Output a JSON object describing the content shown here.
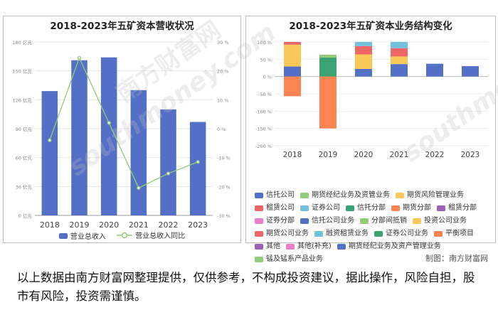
{
  "footer": {
    "credit": "制图：南方财富网",
    "disclaimer": "以上数据由南方财富网整理提供，仅供参考，不构成投资建议，据此操作，风险自担，股市有风险，投资需谨慎。"
  },
  "watermark": {
    "brand_cn": "南方财富网",
    "brand_en": "southmoney.com"
  },
  "chart_data": [
    {
      "type": "bar",
      "title": "2018-2023年五矿资本营收状况",
      "categories": [
        "2018",
        "2019",
        "2020",
        "2021",
        "2022",
        "2023"
      ],
      "series": [
        {
          "name": "营业总收入",
          "kind": "bar",
          "axis": "left",
          "color": "#5470c6",
          "values": [
            129,
            161,
            164,
            130,
            110,
            97
          ]
        },
        {
          "name": "营业总收入同比",
          "kind": "line",
          "axis": "right",
          "color": "#91cc75",
          "values": [
            -4,
            24.5,
            2,
            -20.5,
            -15.5,
            -11.5
          ]
        }
      ],
      "y_left": {
        "ticks": [
          0,
          30,
          60,
          90,
          120,
          150,
          180
        ],
        "tick_labels": [
          "0 亿元",
          "30 亿元",
          "60 亿元",
          "90 亿元",
          "120 亿元",
          "150 亿元",
          "180 亿元"
        ],
        "min": 0,
        "max": 180
      },
      "y_right": {
        "ticks": [
          -30,
          -20,
          -10,
          0,
          10,
          20,
          30
        ],
        "tick_labels": [
          "-30 %",
          "-20 %",
          "-10 %",
          "0 %",
          "10 %",
          "20 %",
          "30 %"
        ],
        "min": -30,
        "max": 30
      },
      "grid": true,
      "legend_position": "bottom"
    },
    {
      "type": "bar",
      "stacked": true,
      "title": "2018-2023年五矿资本业务结构变化",
      "categories": [
        "2018",
        "2019",
        "2020",
        "2021",
        "2022",
        "2023"
      ],
      "y": {
        "ticks": [
          -200,
          -150,
          -100,
          -50,
          0,
          50,
          100
        ],
        "tick_labels": [
          "-200 %",
          "-150 %",
          "-100 %",
          "-50 %",
          "0 %",
          "50 %",
          "100 %"
        ],
        "min": -200,
        "max": 100
      },
      "grid": true,
      "legend_position": "bottom",
      "series": [
        {
          "name": "信托公司",
          "color": "#5470c6",
          "values": [
            29,
            0,
            22,
            36,
            37,
            30
          ]
        },
        {
          "name": "期货经纪业务及资管业务",
          "color": "#91cc75",
          "values": [
            0,
            0,
            0,
            0,
            0,
            0
          ]
        },
        {
          "name": "期货风险管理业务",
          "color": "#fac858",
          "values": [
            63,
            0,
            42,
            22,
            0,
            0
          ]
        },
        {
          "name": "租赁公司",
          "color": "#ee6666",
          "values": [
            8,
            0,
            24,
            24,
            0,
            0
          ]
        },
        {
          "name": "证券公司",
          "color": "#73c0de",
          "values": [
            0,
            0,
            12,
            18,
            0,
            0
          ]
        },
        {
          "name": "信托分部",
          "color": "#3ba272",
          "values": [
            0,
            55,
            0,
            0,
            0,
            0
          ]
        },
        {
          "name": "期货分部",
          "color": "#fc8452",
          "values": [
            -57,
            -150,
            0,
            0,
            0,
            0
          ]
        },
        {
          "name": "租赁分部",
          "color": "#9a60b4",
          "values": [
            0,
            0,
            0,
            0,
            0,
            0
          ]
        },
        {
          "name": "证券分部",
          "color": "#ea7ccc",
          "values": [
            0,
            0,
            0,
            0,
            0,
            0
          ]
        },
        {
          "name": "信托公司业务",
          "color": "#5470c6",
          "values": [
            0,
            0,
            0,
            0,
            0,
            0
          ]
        },
        {
          "name": "分部间抵销",
          "color": "#91cc75",
          "values": [
            0,
            8,
            0,
            0,
            0,
            0
          ]
        },
        {
          "name": "投资公司业务",
          "color": "#fac858",
          "values": [
            0,
            0,
            0,
            0,
            0,
            0
          ]
        },
        {
          "name": "期货公司业务",
          "color": "#ee6666",
          "values": [
            0,
            0,
            0,
            0,
            0,
            0
          ]
        },
        {
          "name": "融资租赁业务",
          "color": "#73c0de",
          "values": [
            0,
            0,
            0,
            0,
            0,
            0
          ]
        },
        {
          "name": "证券公司业务",
          "color": "#3ba272",
          "values": [
            0,
            0,
            0,
            0,
            0,
            0
          ]
        },
        {
          "name": "平衡项目",
          "color": "#fc8452",
          "values": [
            0,
            0,
            0,
            0,
            0,
            0
          ]
        },
        {
          "name": "其他",
          "color": "#9a60b4",
          "values": [
            0,
            0,
            0,
            0,
            0,
            0
          ]
        },
        {
          "name": "其他(补充)",
          "color": "#ea7ccc",
          "values": [
            0,
            0,
            0,
            0,
            0,
            0
          ]
        },
        {
          "name": "期货经纪业务及资产管理业务",
          "color": "#5470c6",
          "values": [
            0,
            0,
            0,
            0,
            0,
            0
          ]
        },
        {
          "name": "锰及锰系产品业务",
          "color": "#91cc75",
          "values": [
            0,
            0,
            0,
            0,
            0,
            0
          ]
        }
      ]
    }
  ]
}
